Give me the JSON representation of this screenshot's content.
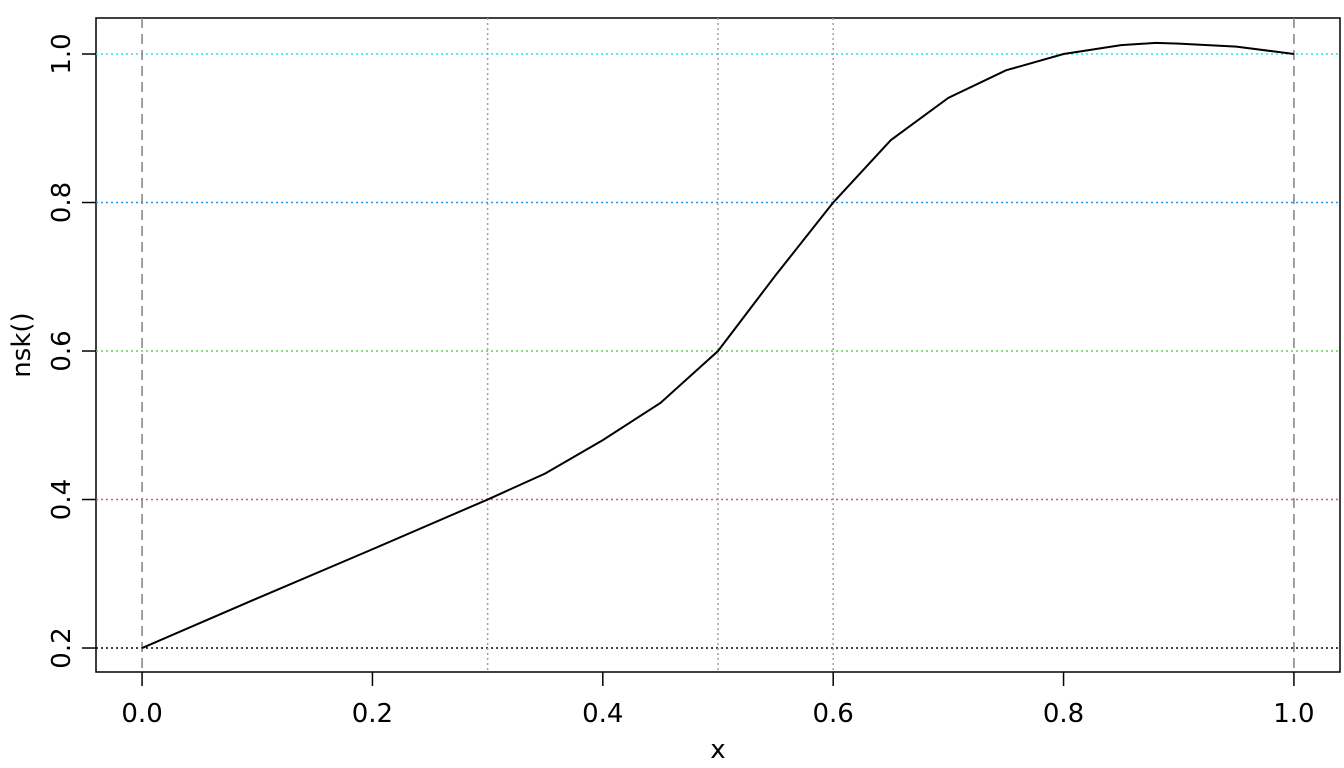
{
  "chart_data": {
    "type": "line",
    "xlabel": "x",
    "ylabel": "nsk()",
    "x": [
      0,
      0.1,
      0.2,
      0.3,
      0.35,
      0.4,
      0.45,
      0.5,
      0.55,
      0.6,
      0.65,
      0.7,
      0.75,
      0.8,
      0.85,
      0.88,
      0.9,
      0.95,
      1.0
    ],
    "series": [
      {
        "color": "#000000",
        "values": [
          0.2,
          0.267,
          0.333,
          0.4,
          0.435,
          0.48,
          0.53,
          0.6,
          0.702,
          0.8,
          0.884,
          0.941,
          0.978,
          1.0,
          1.012,
          1.015,
          1.014,
          1.01,
          1.0
        ]
      }
    ],
    "xlim": [
      -0.04,
      1.04
    ],
    "ylim": [
      0.1677,
      1.0485
    ],
    "xticks": [
      {
        "value": 0,
        "label": "0.0"
      },
      0.2,
      0.4,
      0.6,
      0.8,
      {
        "value": 1,
        "label": "1.0"
      }
    ],
    "yticks": [
      0.2,
      0.4,
      0.6,
      0.8,
      {
        "value": 1,
        "label": "1.0"
      }
    ],
    "boundary_knots": [
      0,
      1
    ],
    "boundary_knot_color": "#808080",
    "interior_knots": [
      0.3,
      0.5,
      0.6
    ],
    "interior_knot_color": "#a0a0a0",
    "hlines": [
      {
        "value": 0.2,
        "color": "#000000"
      },
      {
        "value": 0.4,
        "color": "#DF536B"
      },
      {
        "value": 0.6,
        "color": "#61D04F"
      },
      {
        "value": 0.8,
        "color": "#2297E6"
      },
      {
        "value": 1.0,
        "color": "#28E2E5"
      }
    ]
  }
}
